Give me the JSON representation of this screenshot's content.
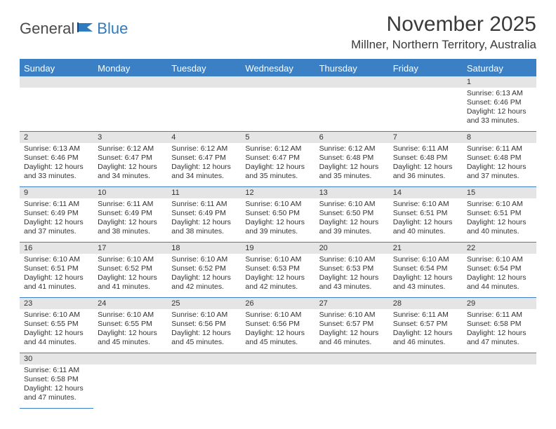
{
  "colors": {
    "header_bg": "#3b7fc4",
    "header_text": "#ffffff",
    "daynum_bg": "#e5e5e5",
    "border": "#3b7fc4",
    "logo_gray": "#4a4a4a",
    "logo_blue": "#2f7bbf"
  },
  "logo": {
    "part1": "General",
    "part2": "Blue"
  },
  "title": "November 2025",
  "location": "Millner, Northern Territory, Australia",
  "weekdays": [
    "Sunday",
    "Monday",
    "Tuesday",
    "Wednesday",
    "Thursday",
    "Friday",
    "Saturday"
  ],
  "rows": [
    [
      {
        "n": "",
        "lines": []
      },
      {
        "n": "",
        "lines": []
      },
      {
        "n": "",
        "lines": []
      },
      {
        "n": "",
        "lines": []
      },
      {
        "n": "",
        "lines": []
      },
      {
        "n": "",
        "lines": []
      },
      {
        "n": "1",
        "lines": [
          "Sunrise: 6:13 AM",
          "Sunset: 6:46 PM",
          "Daylight: 12 hours and 33 minutes."
        ]
      }
    ],
    [
      {
        "n": "2",
        "lines": [
          "Sunrise: 6:13 AM",
          "Sunset: 6:46 PM",
          "Daylight: 12 hours and 33 minutes."
        ]
      },
      {
        "n": "3",
        "lines": [
          "Sunrise: 6:12 AM",
          "Sunset: 6:47 PM",
          "Daylight: 12 hours and 34 minutes."
        ]
      },
      {
        "n": "4",
        "lines": [
          "Sunrise: 6:12 AM",
          "Sunset: 6:47 PM",
          "Daylight: 12 hours and 34 minutes."
        ]
      },
      {
        "n": "5",
        "lines": [
          "Sunrise: 6:12 AM",
          "Sunset: 6:47 PM",
          "Daylight: 12 hours and 35 minutes."
        ]
      },
      {
        "n": "6",
        "lines": [
          "Sunrise: 6:12 AM",
          "Sunset: 6:48 PM",
          "Daylight: 12 hours and 35 minutes."
        ]
      },
      {
        "n": "7",
        "lines": [
          "Sunrise: 6:11 AM",
          "Sunset: 6:48 PM",
          "Daylight: 12 hours and 36 minutes."
        ]
      },
      {
        "n": "8",
        "lines": [
          "Sunrise: 6:11 AM",
          "Sunset: 6:48 PM",
          "Daylight: 12 hours and 37 minutes."
        ]
      }
    ],
    [
      {
        "n": "9",
        "lines": [
          "Sunrise: 6:11 AM",
          "Sunset: 6:49 PM",
          "Daylight: 12 hours and 37 minutes."
        ]
      },
      {
        "n": "10",
        "lines": [
          "Sunrise: 6:11 AM",
          "Sunset: 6:49 PM",
          "Daylight: 12 hours and 38 minutes."
        ]
      },
      {
        "n": "11",
        "lines": [
          "Sunrise: 6:11 AM",
          "Sunset: 6:49 PM",
          "Daylight: 12 hours and 38 minutes."
        ]
      },
      {
        "n": "12",
        "lines": [
          "Sunrise: 6:10 AM",
          "Sunset: 6:50 PM",
          "Daylight: 12 hours and 39 minutes."
        ]
      },
      {
        "n": "13",
        "lines": [
          "Sunrise: 6:10 AM",
          "Sunset: 6:50 PM",
          "Daylight: 12 hours and 39 minutes."
        ]
      },
      {
        "n": "14",
        "lines": [
          "Sunrise: 6:10 AM",
          "Sunset: 6:51 PM",
          "Daylight: 12 hours and 40 minutes."
        ]
      },
      {
        "n": "15",
        "lines": [
          "Sunrise: 6:10 AM",
          "Sunset: 6:51 PM",
          "Daylight: 12 hours and 40 minutes."
        ]
      }
    ],
    [
      {
        "n": "16",
        "lines": [
          "Sunrise: 6:10 AM",
          "Sunset: 6:51 PM",
          "Daylight: 12 hours and 41 minutes."
        ]
      },
      {
        "n": "17",
        "lines": [
          "Sunrise: 6:10 AM",
          "Sunset: 6:52 PM",
          "Daylight: 12 hours and 41 minutes."
        ]
      },
      {
        "n": "18",
        "lines": [
          "Sunrise: 6:10 AM",
          "Sunset: 6:52 PM",
          "Daylight: 12 hours and 42 minutes."
        ]
      },
      {
        "n": "19",
        "lines": [
          "Sunrise: 6:10 AM",
          "Sunset: 6:53 PM",
          "Daylight: 12 hours and 42 minutes."
        ]
      },
      {
        "n": "20",
        "lines": [
          "Sunrise: 6:10 AM",
          "Sunset: 6:53 PM",
          "Daylight: 12 hours and 43 minutes."
        ]
      },
      {
        "n": "21",
        "lines": [
          "Sunrise: 6:10 AM",
          "Sunset: 6:54 PM",
          "Daylight: 12 hours and 43 minutes."
        ]
      },
      {
        "n": "22",
        "lines": [
          "Sunrise: 6:10 AM",
          "Sunset: 6:54 PM",
          "Daylight: 12 hours and 44 minutes."
        ]
      }
    ],
    [
      {
        "n": "23",
        "lines": [
          "Sunrise: 6:10 AM",
          "Sunset: 6:55 PM",
          "Daylight: 12 hours and 44 minutes."
        ]
      },
      {
        "n": "24",
        "lines": [
          "Sunrise: 6:10 AM",
          "Sunset: 6:55 PM",
          "Daylight: 12 hours and 45 minutes."
        ]
      },
      {
        "n": "25",
        "lines": [
          "Sunrise: 6:10 AM",
          "Sunset: 6:56 PM",
          "Daylight: 12 hours and 45 minutes."
        ]
      },
      {
        "n": "26",
        "lines": [
          "Sunrise: 6:10 AM",
          "Sunset: 6:56 PM",
          "Daylight: 12 hours and 45 minutes."
        ]
      },
      {
        "n": "27",
        "lines": [
          "Sunrise: 6:10 AM",
          "Sunset: 6:57 PM",
          "Daylight: 12 hours and 46 minutes."
        ]
      },
      {
        "n": "28",
        "lines": [
          "Sunrise: 6:11 AM",
          "Sunset: 6:57 PM",
          "Daylight: 12 hours and 46 minutes."
        ]
      },
      {
        "n": "29",
        "lines": [
          "Sunrise: 6:11 AM",
          "Sunset: 6:58 PM",
          "Daylight: 12 hours and 47 minutes."
        ]
      }
    ],
    [
      {
        "n": "30",
        "lines": [
          "Sunrise: 6:11 AM",
          "Sunset: 6:58 PM",
          "Daylight: 12 hours and 47 minutes."
        ]
      },
      {
        "n": "",
        "lines": []
      },
      {
        "n": "",
        "lines": []
      },
      {
        "n": "",
        "lines": []
      },
      {
        "n": "",
        "lines": []
      },
      {
        "n": "",
        "lines": []
      },
      {
        "n": "",
        "lines": []
      }
    ]
  ]
}
